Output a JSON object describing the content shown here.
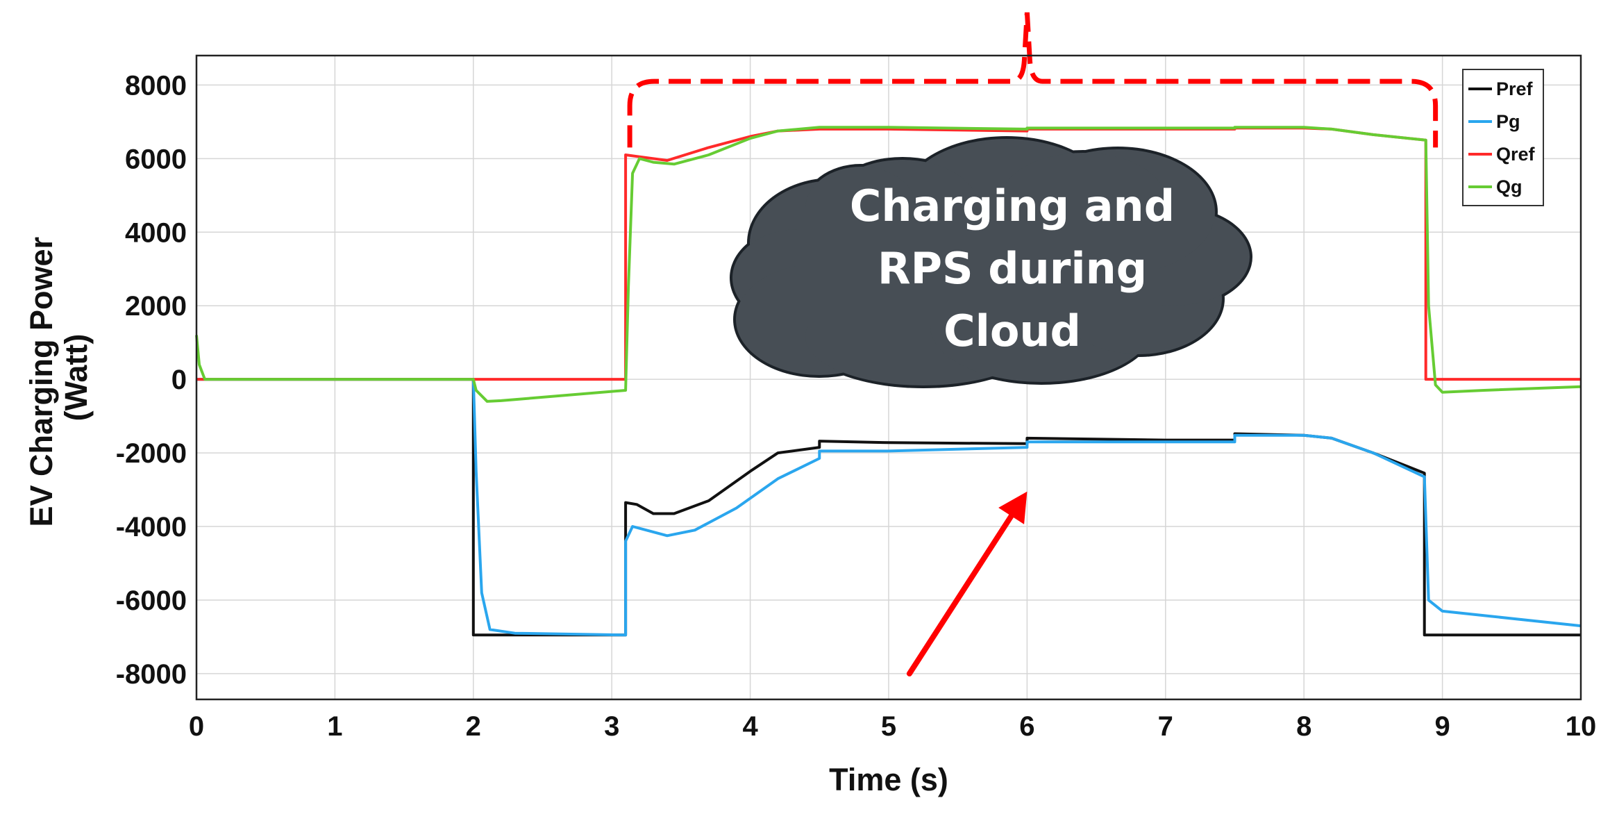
{
  "chart_data": {
    "type": "line",
    "title": "",
    "xlabel": "Time (s)",
    "ylabel_lines": [
      "EV Charging Power",
      "(Watt)"
    ],
    "xlim": [
      0,
      10
    ],
    "ylim": [
      -8700,
      8800
    ],
    "xticks": [
      0,
      1,
      2,
      3,
      4,
      5,
      6,
      7,
      8,
      9,
      10
    ],
    "yticks": [
      -8000,
      -6000,
      -4000,
      -2000,
      0,
      2000,
      4000,
      6000,
      8000
    ],
    "grid": true,
    "legend": {
      "placement": "top-right",
      "entries": [
        "Pref",
        "Pg",
        "Qref",
        "Qg"
      ]
    },
    "series": [
      {
        "name": "Pref",
        "color": "#111111",
        "points": [
          [
            0,
            0
          ],
          [
            2,
            0
          ],
          [
            2,
            -6950
          ],
          [
            3.1,
            -6950
          ],
          [
            3.1,
            -3350
          ],
          [
            3.18,
            -3400
          ],
          [
            3.3,
            -3650
          ],
          [
            3.45,
            -3650
          ],
          [
            3.7,
            -3300
          ],
          [
            4,
            -2500
          ],
          [
            4.2,
            -2000
          ],
          [
            4.5,
            -1850
          ],
          [
            4.5,
            -1680
          ],
          [
            5,
            -1720
          ],
          [
            6,
            -1750
          ],
          [
            6,
            -1600
          ],
          [
            7,
            -1650
          ],
          [
            7.5,
            -1650
          ],
          [
            7.5,
            -1480
          ],
          [
            8,
            -1520
          ],
          [
            8.2,
            -1600
          ],
          [
            8.5,
            -2000
          ],
          [
            8.87,
            -2550
          ],
          [
            8.87,
            -6950
          ],
          [
            10,
            -6950
          ]
        ]
      },
      {
        "name": "Pg",
        "color": "#2aa6ee",
        "points": [
          [
            0,
            0
          ],
          [
            2,
            0
          ],
          [
            2.02,
            -2500
          ],
          [
            2.06,
            -5800
          ],
          [
            2.12,
            -6800
          ],
          [
            2.3,
            -6900
          ],
          [
            3.1,
            -6950
          ],
          [
            3.1,
            -4400
          ],
          [
            3.15,
            -4000
          ],
          [
            3.25,
            -4100
          ],
          [
            3.4,
            -4250
          ],
          [
            3.6,
            -4100
          ],
          [
            3.9,
            -3500
          ],
          [
            4.2,
            -2700
          ],
          [
            4.5,
            -2150
          ],
          [
            4.5,
            -1950
          ],
          [
            5,
            -1950
          ],
          [
            6,
            -1850
          ],
          [
            6,
            -1700
          ],
          [
            7,
            -1700
          ],
          [
            7.5,
            -1700
          ],
          [
            7.5,
            -1520
          ],
          [
            8,
            -1520
          ],
          [
            8.2,
            -1600
          ],
          [
            8.5,
            -2000
          ],
          [
            8.87,
            -2650
          ],
          [
            8.9,
            -6000
          ],
          [
            9,
            -6300
          ],
          [
            10,
            -6700
          ]
        ]
      },
      {
        "name": "Qref",
        "color": "#ff2a2a",
        "points": [
          [
            0,
            0
          ],
          [
            3.1,
            0
          ],
          [
            3.1,
            6100
          ],
          [
            3.2,
            6050
          ],
          [
            3.4,
            5950
          ],
          [
            3.7,
            6300
          ],
          [
            4,
            6600
          ],
          [
            4.2,
            6750
          ],
          [
            4.5,
            6800
          ],
          [
            5,
            6800
          ],
          [
            6,
            6750
          ],
          [
            6,
            6800
          ],
          [
            7,
            6800
          ],
          [
            7.5,
            6800
          ],
          [
            7.5,
            6830
          ],
          [
            8,
            6830
          ],
          [
            8.2,
            6800
          ],
          [
            8.5,
            6650
          ],
          [
            8.88,
            6500
          ],
          [
            8.88,
            0
          ],
          [
            10,
            0
          ]
        ]
      },
      {
        "name": "Qg",
        "color": "#66cc33",
        "points": [
          [
            0,
            1200
          ],
          [
            0.02,
            400
          ],
          [
            0.06,
            0
          ],
          [
            2,
            0
          ],
          [
            2.02,
            -300
          ],
          [
            2.1,
            -600
          ],
          [
            2.2,
            -580
          ],
          [
            3.1,
            -300
          ],
          [
            3.12,
            2500
          ],
          [
            3.15,
            5600
          ],
          [
            3.2,
            6000
          ],
          [
            3.3,
            5900
          ],
          [
            3.45,
            5850
          ],
          [
            3.7,
            6100
          ],
          [
            4,
            6550
          ],
          [
            4.2,
            6750
          ],
          [
            4.5,
            6850
          ],
          [
            5,
            6850
          ],
          [
            6,
            6800
          ],
          [
            6,
            6830
          ],
          [
            7,
            6830
          ],
          [
            7.5,
            6830
          ],
          [
            7.5,
            6850
          ],
          [
            8,
            6850
          ],
          [
            8.2,
            6800
          ],
          [
            8.5,
            6650
          ],
          [
            8.88,
            6500
          ],
          [
            8.9,
            2000
          ],
          [
            8.95,
            -150
          ],
          [
            9,
            -350
          ],
          [
            9.3,
            -300
          ],
          [
            10,
            -200
          ]
        ]
      }
    ],
    "annotations": [
      {
        "type": "callout-cloud",
        "lines": [
          "Charging and",
          "RPS during",
          "Cloud"
        ],
        "fill": "#474e55",
        "text_color": "#ffffff"
      },
      {
        "type": "dashed-bracket",
        "color": "#ff0000",
        "x_start": 3.13,
        "x_end": 8.95,
        "x_peak": 6.0,
        "y_level": 8100,
        "y_ends": 6300
      },
      {
        "type": "arrow",
        "color": "#ff0000",
        "from": [
          5.15,
          -8000
        ],
        "to": [
          6.0,
          -3050
        ]
      }
    ]
  }
}
